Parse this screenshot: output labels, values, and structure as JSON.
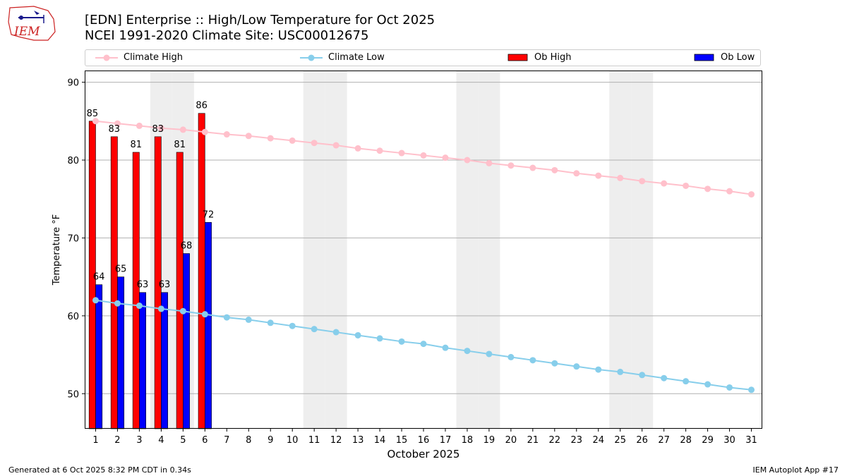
{
  "header": {
    "title_line1": "[EDN] Enterprise :: High/Low Temperature for Oct 2025",
    "title_line2": "NCEI 1991-2020 Climate Site: USC00012675",
    "logo_text": "IEM"
  },
  "footer": {
    "left": "Generated at 6 Oct 2025 8:32 PM CDT in 0.34s",
    "right": "IEM Autoplot App #17"
  },
  "colors": {
    "ob_high": "#ff0000",
    "ob_low": "#0000ff",
    "climate_high": "#ffc0cb",
    "climate_low": "#87ceeb",
    "weekend_band": "#eeeeee",
    "logo": "#cc2222"
  },
  "legend": {
    "climate_high": "Climate High",
    "climate_low": "Climate Low",
    "ob_high": "Ob High",
    "ob_low": "Ob Low",
    "placement": "top, above plot"
  },
  "chart_data": {
    "type": "bar",
    "xlabel": "October 2025",
    "ylabel": "Temperature °F",
    "x": [
      1,
      2,
      3,
      4,
      5,
      6,
      7,
      8,
      9,
      10,
      11,
      12,
      13,
      14,
      15,
      16,
      17,
      18,
      19,
      20,
      21,
      22,
      23,
      24,
      25,
      26,
      27,
      28,
      29,
      30,
      31
    ],
    "xlim": [
      0.5,
      31.5
    ],
    "ylim": [
      45.5,
      91.5
    ],
    "yticks": [
      50,
      60,
      70,
      80,
      90
    ],
    "grid": "horizontal",
    "weekend_days": [
      4,
      5,
      11,
      12,
      18,
      19,
      25,
      26
    ],
    "series": [
      {
        "name": "Ob High",
        "kind": "bar",
        "x": [
          1,
          2,
          3,
          4,
          5,
          6
        ],
        "values": [
          85,
          83,
          81,
          83,
          81,
          86
        ],
        "labels": [
          "85",
          "83",
          "81",
          "83",
          "81",
          "86"
        ]
      },
      {
        "name": "Ob Low",
        "kind": "bar",
        "x": [
          1,
          2,
          3,
          4,
          5,
          6
        ],
        "values": [
          64,
          65,
          63,
          63,
          68,
          72
        ],
        "labels": [
          "64",
          "65",
          "63",
          "63",
          "68",
          "72"
        ]
      },
      {
        "name": "Climate High",
        "kind": "line",
        "values": [
          85.0,
          84.7,
          84.4,
          84.1,
          83.9,
          83.6,
          83.3,
          83.1,
          82.8,
          82.5,
          82.2,
          81.9,
          81.5,
          81.2,
          80.9,
          80.6,
          80.3,
          80.0,
          79.6,
          79.3,
          79.0,
          78.7,
          78.3,
          78.0,
          77.7,
          77.3,
          77.0,
          76.7,
          76.3,
          76.0,
          75.6
        ]
      },
      {
        "name": "Climate Low",
        "kind": "line",
        "values": [
          62.0,
          61.6,
          61.3,
          60.9,
          60.6,
          60.2,
          59.8,
          59.5,
          59.1,
          58.7,
          58.3,
          57.9,
          57.5,
          57.1,
          56.7,
          56.4,
          55.9,
          55.5,
          55.1,
          54.7,
          54.3,
          53.9,
          53.5,
          53.1,
          52.8,
          52.4,
          52.0,
          51.6,
          51.2,
          50.8,
          50.5
        ]
      }
    ]
  }
}
